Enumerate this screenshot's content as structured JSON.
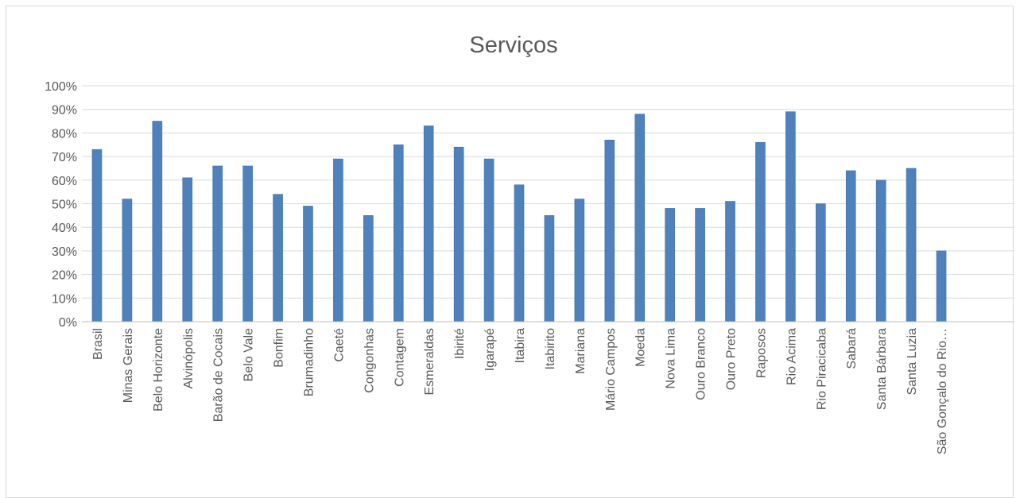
{
  "chart_data": {
    "type": "bar",
    "title": "Serviços",
    "xlabel": "",
    "ylabel": "",
    "ylim": [
      0,
      1
    ],
    "y_ticks": [
      "0%",
      "10%",
      "20%",
      "30%",
      "40%",
      "50%",
      "60%",
      "70%",
      "80%",
      "90%",
      "100%"
    ],
    "grid": true,
    "legend": "none",
    "bar_color": "#4f81bd",
    "categories": [
      "Brasil",
      "Minas Gerais",
      "Belo Horizonte",
      "Alvinópolis",
      "Barão de Cocais",
      "Belo Vale",
      "Bonfim",
      "Brumadinho",
      "Caeté",
      "Congonhas",
      "Contagem",
      "Esmeraldas",
      "Ibirité",
      "Igarapé",
      "Itabira",
      "Itabirito",
      "Mariana",
      "Mário Campos",
      "Moeda",
      "Nova Lima",
      "Ouro Branco",
      "Ouro Preto",
      "Raposos",
      "Rio Acima",
      "Rio Piracicaba",
      "Sabará",
      "Santa Bárbara",
      "Santa Luzia",
      "São Gonçalo do Rio…"
    ],
    "values": [
      0.73,
      0.52,
      0.85,
      0.61,
      0.66,
      0.66,
      0.54,
      0.49,
      0.69,
      0.45,
      0.75,
      0.83,
      0.74,
      0.69,
      0.58,
      0.45,
      0.52,
      0.77,
      0.88,
      0.48,
      0.48,
      0.51,
      0.76,
      0.89,
      0.5,
      0.64,
      0.6,
      0.65,
      0.3
    ]
  }
}
